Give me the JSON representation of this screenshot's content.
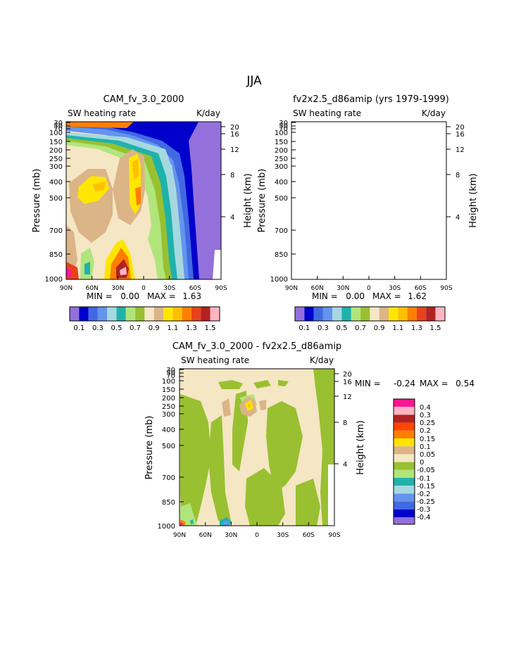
{
  "page_title": "JJA",
  "colors": {
    "purple": "#9370db",
    "navy": "#0000cd",
    "royal": "#4169e1",
    "cornflower": "#6495ed",
    "sky": "#87aeec",
    "powder": "#a5d8e0",
    "teal": "#20b2aa",
    "palegreen": "#b0e57c",
    "olive": "#99c031",
    "cream": "#f5e6c4",
    "tan": "#dbb488",
    "yellow": "#ffe600",
    "gold": "#ffc000",
    "orange": "#ff7f00",
    "red": "#e8421a",
    "brick": "#b22222",
    "pink": "#ffb6c1",
    "magenta": "#ff1493"
  },
  "chart_data": [
    {
      "type": "contour",
      "title": "CAM_fv_3.0_2000",
      "left_label": "SW heating rate",
      "right_label": "K/day",
      "ylabel": "Pressure (mb)",
      "ylabel_right": "Height (km)",
      "x_ticks": [
        "90N",
        "60N",
        "30N",
        "0",
        "30S",
        "60S",
        "90S"
      ],
      "y_ticks": [
        "30",
        "50",
        "70",
        "100",
        "150",
        "200",
        "250",
        "300",
        "400",
        "500",
        "700",
        "850",
        "1000"
      ],
      "y_ticks_right": [
        "20",
        "16",
        "12",
        "8",
        "4"
      ],
      "min_text": "MIN =",
      "min_value": "0.00",
      "max_text": "MAX =",
      "max_value": "1.63",
      "colorbar_labels": [
        "0.1",
        "0.3",
        "0.5",
        "0.7",
        "0.9",
        "1.1",
        "1.3",
        "1.5"
      ]
    },
    {
      "type": "contour",
      "title": "fv2x2.5_d86amip (yrs 1979-1999)",
      "left_label": "SW heating rate",
      "right_label": "K/day",
      "ylabel": "Pressure (mb)",
      "ylabel_right": "Height (km)",
      "x_ticks": [
        "90N",
        "60N",
        "30N",
        "0",
        "30S",
        "60S",
        "90S"
      ],
      "y_ticks": [
        "30",
        "50",
        "70",
        "100",
        "150",
        "200",
        "250",
        "300",
        "400",
        "500",
        "700",
        "850",
        "1000"
      ],
      "y_ticks_right": [
        "20",
        "16",
        "12",
        "8",
        "4"
      ],
      "min_text": "MIN =",
      "min_value": "0.00",
      "max_text": "MAX =",
      "max_value": "1.62",
      "colorbar_labels": [
        "0.1",
        "0.3",
        "0.5",
        "0.7",
        "0.9",
        "1.1",
        "1.3",
        "1.5"
      ]
    },
    {
      "type": "contour",
      "title": "CAM_fv_3.0_2000 - fv2x2.5_d86amip",
      "left_label": "SW heating rate",
      "right_label": "K/day",
      "ylabel": "Pressure (mb)",
      "ylabel_right": "Height (km)",
      "x_ticks": [
        "90N",
        "60N",
        "30N",
        "0",
        "30S",
        "60S",
        "90S"
      ],
      "y_ticks": [
        "30",
        "50",
        "70",
        "100",
        "150",
        "200",
        "250",
        "300",
        "400",
        "500",
        "700",
        "850",
        "1000"
      ],
      "y_ticks_right": [
        "20",
        "16",
        "12",
        "8",
        "4"
      ],
      "min_text": "MIN =",
      "min_value": "-0.24",
      "max_text": "MAX =",
      "max_value": "0.54",
      "colorbar_labels": [
        "0.4",
        "0.3",
        "0.25",
        "0.2",
        "0.15",
        "0.1",
        "0.05",
        "0",
        "-0.05",
        "-0.1",
        "-0.15",
        "-0.2",
        "-0.25",
        "-0.3",
        "-0.4"
      ]
    }
  ]
}
